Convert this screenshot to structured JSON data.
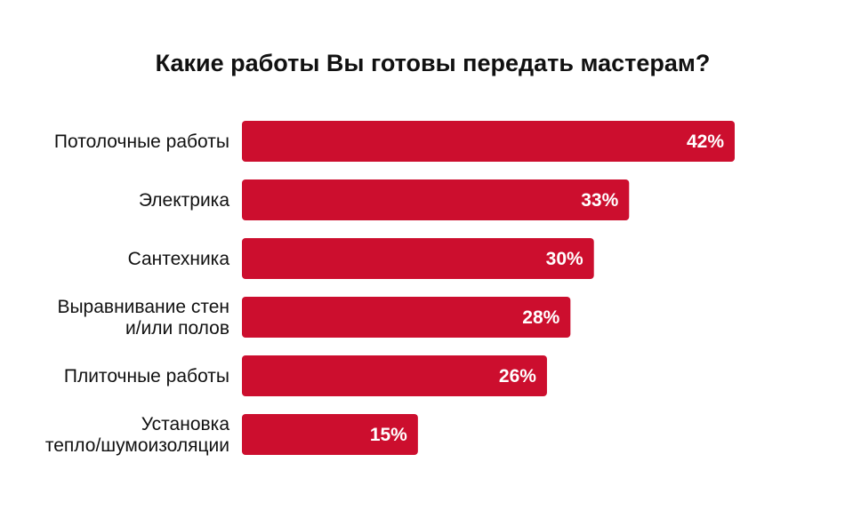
{
  "chart_data": {
    "type": "bar",
    "orientation": "horizontal",
    "title": "Какие работы Вы готовы передать мастерам?",
    "categories": [
      [
        "Потолочные работы"
      ],
      [
        "Электрика"
      ],
      [
        "Сантехника"
      ],
      [
        "Выравнивание стен",
        "и/или полов"
      ],
      [
        "Плиточные работы"
      ],
      [
        "Установка",
        "тепло/шумоизоляции"
      ]
    ],
    "values": [
      42,
      33,
      30,
      28,
      26,
      15
    ],
    "value_labels": [
      "42%",
      "33%",
      "30%",
      "28%",
      "26%",
      "15%"
    ],
    "unit": "%",
    "grid": false,
    "legend": "none",
    "bar_color": "#cc0e2e"
  }
}
